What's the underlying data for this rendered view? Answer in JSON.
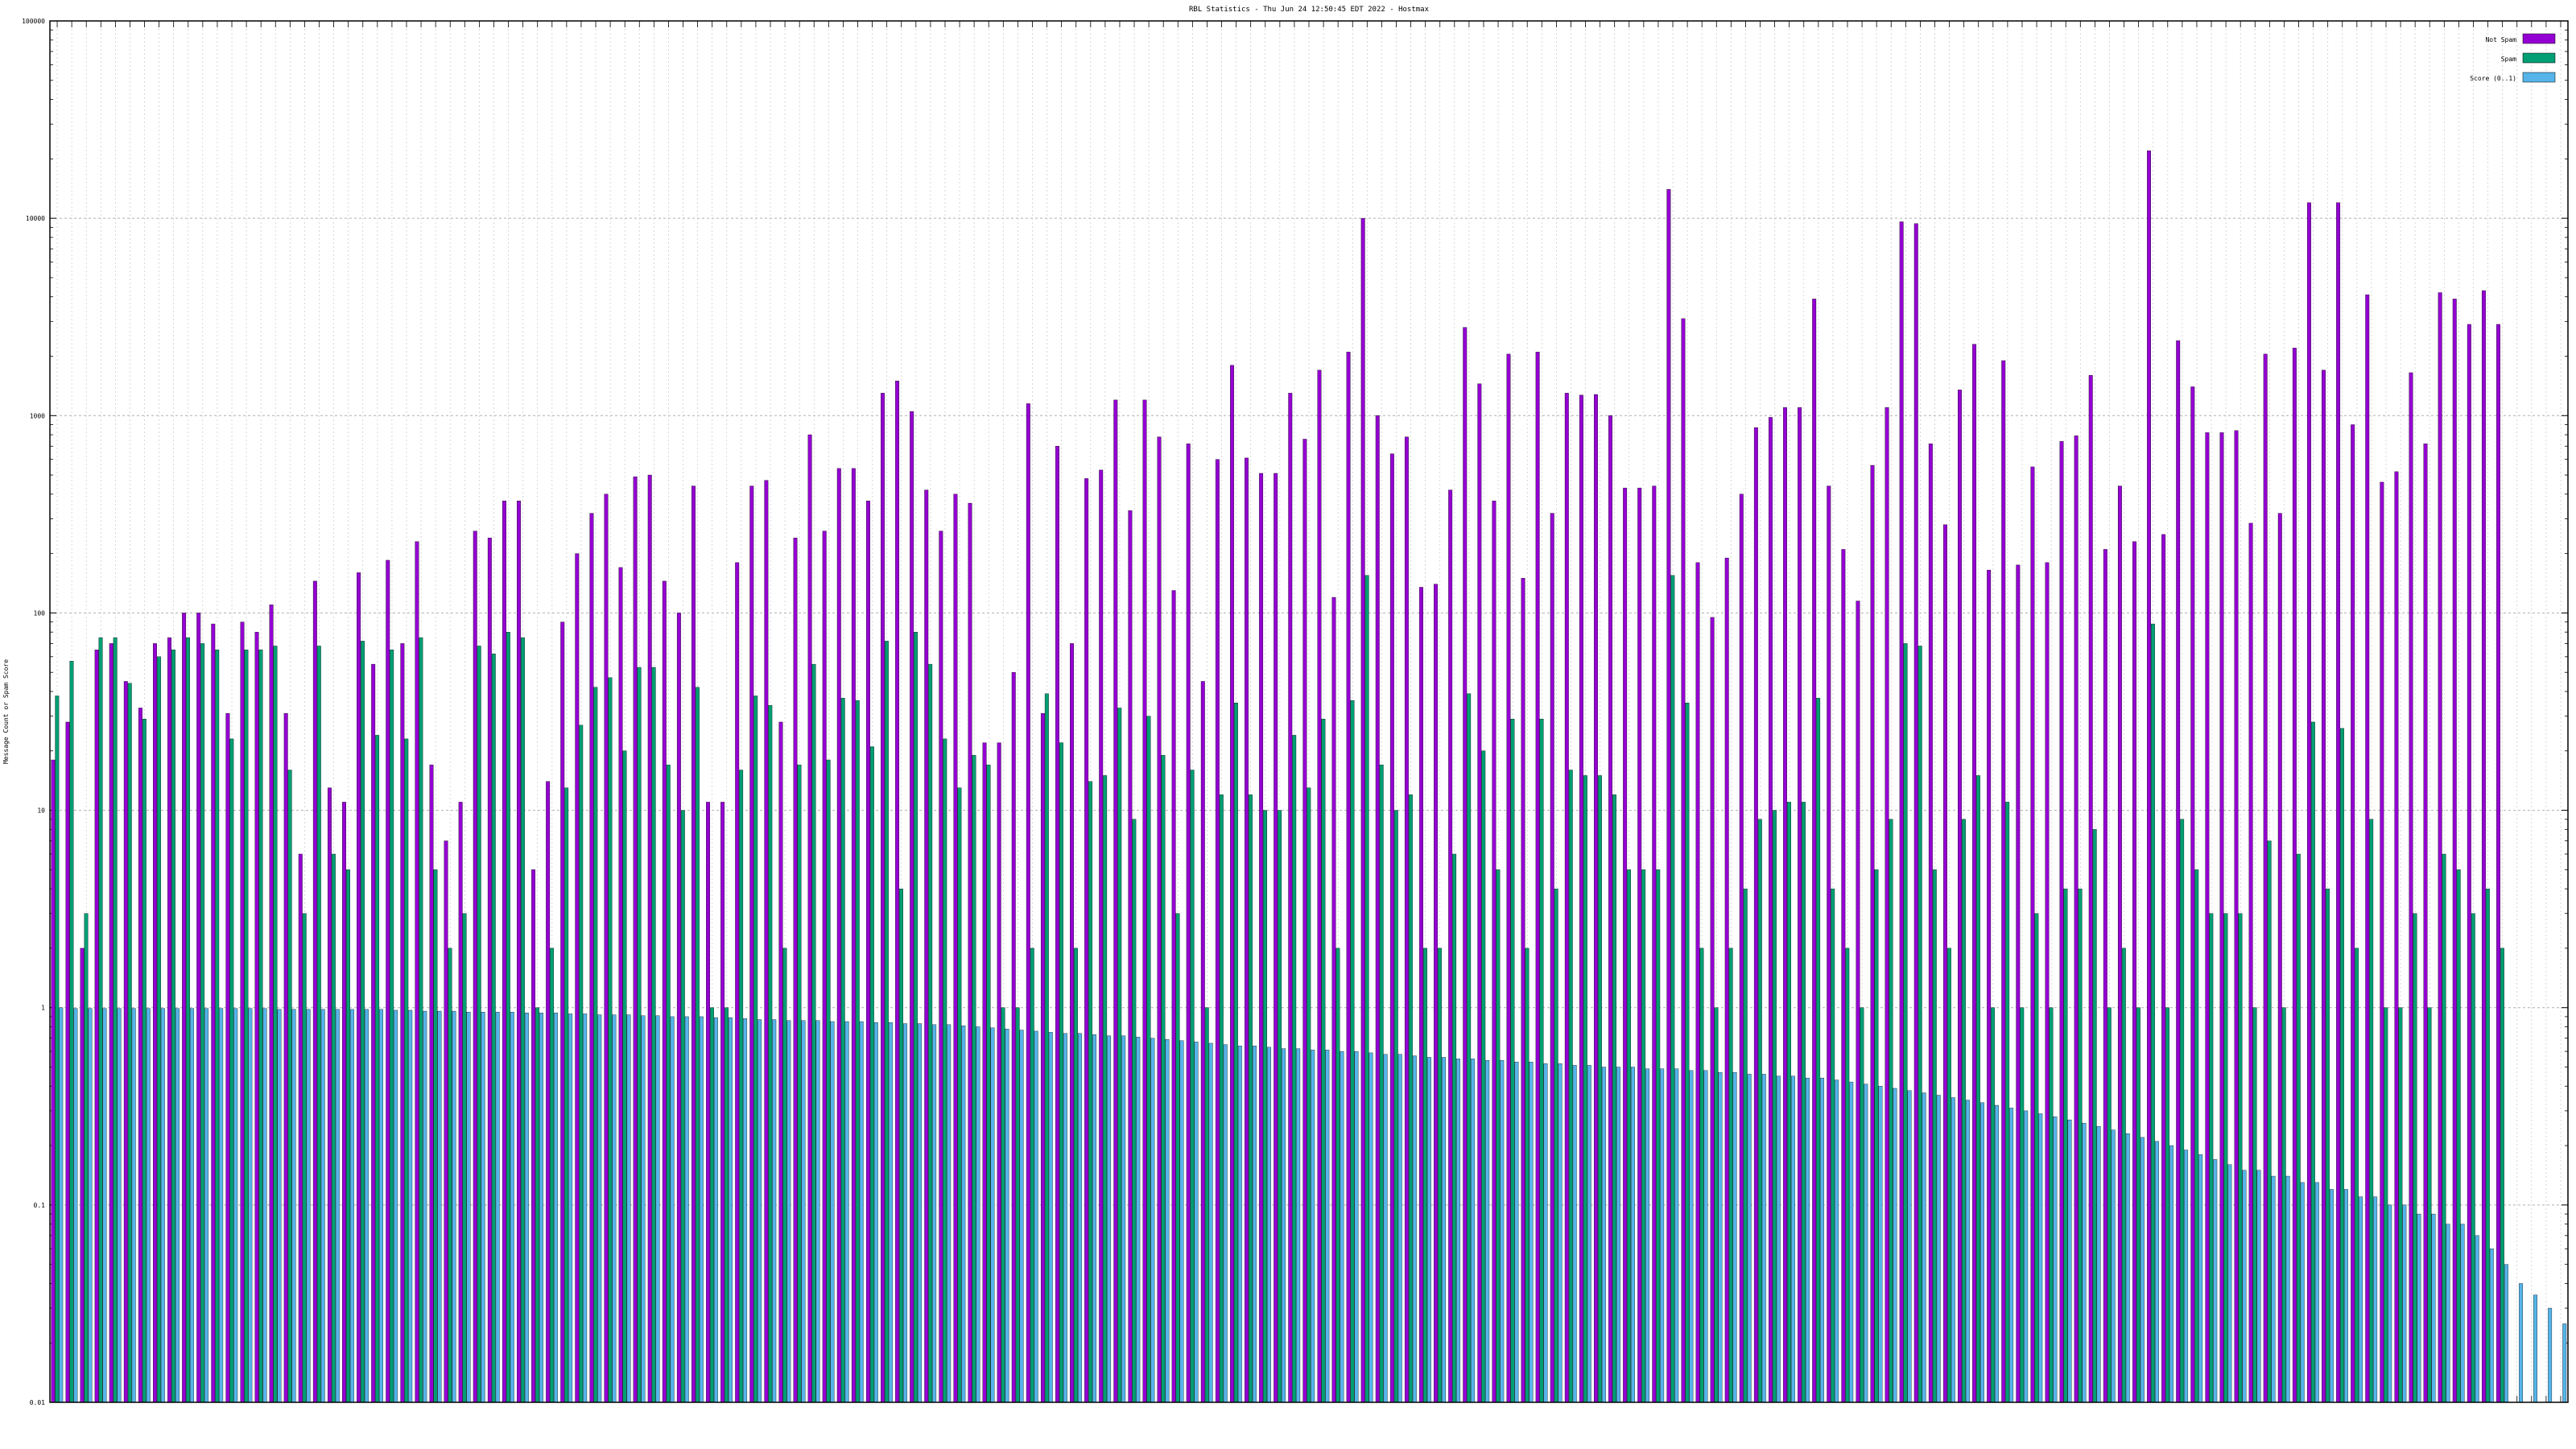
{
  "page": {
    "title": "RBL Statistics - Thu Jun 24 12:50:45 EDT 2022 - Hostmax"
  },
  "chart_data": {
    "type": "bar",
    "title": "RBL Statistics - Thu Jun 24 12:50:45 EDT 2022 - Hostmax",
    "ylabel": "Message Count or Spam Score",
    "xlabel": "",
    "yscale": "log",
    "ylim": [
      0.01,
      100000
    ],
    "yticks": [
      "0.01",
      "0.1",
      "1",
      "10",
      "100",
      "1000",
      "10000",
      "100000"
    ],
    "grid": true,
    "legend_position": "top-right",
    "category_count": 173,
    "x_tick_labels_note": "RBL zone names printed under each group are too small to read",
    "colors": {
      "Not Spam": "#9400d3",
      "Spam": "#009e73",
      "Score": "#56b4e9"
    },
    "series": [
      {
        "name": "Not Spam",
        "values": [
          18,
          28,
          2,
          65,
          70,
          45,
          33,
          70,
          75,
          100,
          100,
          88,
          31,
          90,
          80,
          110,
          31,
          6,
          145,
          13,
          11,
          160,
          55,
          185,
          70,
          230,
          17,
          7,
          11,
          260,
          240,
          370,
          370,
          5,
          14,
          90,
          200,
          320,
          400,
          170,
          490,
          500,
          145,
          100,
          440,
          11,
          11,
          180,
          440,
          470,
          28,
          240,
          800,
          260,
          540,
          540,
          370,
          1300,
          1500,
          1050,
          420,
          260,
          400,
          360,
          22,
          22,
          50,
          1150,
          31,
          700,
          70,
          480,
          530,
          1200,
          330,
          1200,
          780,
          130,
          720,
          45,
          600,
          1800,
          610,
          510,
          510,
          1300,
          760,
          1700,
          120,
          2100,
          10000,
          1000,
          640,
          780,
          135,
          140,
          420,
          2800,
          1450,
          370,
          2050,
          150,
          2100,
          320,
          1300,
          1270,
          1280,
          1000,
          430,
          430,
          440,
          14000,
          3100,
          180,
          95,
          190,
          400,
          870,
          980,
          1100,
          1100,
          3900,
          440,
          210,
          115,
          560,
          1100,
          9600,
          9400,
          720,
          280,
          1350,
          2300,
          165,
          1900,
          175,
          550,
          180,
          740,
          790,
          1600,
          210,
          440,
          230,
          22000,
          250,
          2400,
          1400,
          820,
          820,
          840,
          285,
          2050,
          320,
          2200,
          12000,
          1700,
          12000,
          900,
          4100,
          460,
          520,
          1650,
          720,
          4200,
          3900,
          2900,
          4300,
          2900
        ],
        "value_note": "purple series; first bar in each group; read approximately from the log axis"
      },
      {
        "name": "Spam",
        "values": [
          38,
          57,
          3,
          75,
          75,
          44,
          29,
          60,
          65,
          75,
          70,
          65,
          23,
          65,
          65,
          68,
          16,
          3,
          68,
          6,
          5,
          72,
          24,
          65,
          23,
          75,
          5,
          2,
          3,
          68,
          62,
          80,
          75,
          1,
          2,
          13,
          27,
          42,
          47,
          20,
          53,
          53,
          17,
          10,
          42,
          1,
          1,
          16,
          38,
          34,
          2,
          17,
          55,
          18,
          37,
          36,
          21,
          72,
          4,
          80,
          55,
          23,
          13,
          19,
          17,
          1,
          1,
          2,
          39,
          22,
          2,
          14,
          15,
          33,
          9,
          30,
          19,
          3,
          16,
          1,
          12,
          35,
          12,
          10,
          10,
          24,
          13,
          29,
          2,
          36,
          155,
          17,
          10,
          12,
          2,
          2,
          6,
          39,
          20,
          5,
          29,
          2,
          29,
          4,
          16,
          15,
          15,
          12,
          5,
          5,
          5,
          155,
          35,
          2,
          1,
          2,
          4,
          9,
          10,
          11,
          11,
          37,
          4,
          2,
          1,
          5,
          9,
          70,
          68,
          5,
          2,
          9,
          15,
          1,
          11,
          1,
          3,
          1,
          4,
          4,
          8,
          1,
          2,
          1,
          88,
          1,
          9,
          5,
          3,
          3,
          3,
          1,
          7,
          1,
          6,
          28,
          4,
          26,
          2,
          9,
          1,
          1,
          3,
          1,
          6,
          5,
          3,
          4,
          2
        ],
        "value_note": "teal series; second bar in each group"
      },
      {
        "name": "Score (0..1)",
        "values": [
          1.0,
          0.99,
          0.99,
          0.99,
          0.99,
          0.99,
          0.99,
          0.99,
          0.99,
          0.99,
          0.99,
          0.99,
          0.99,
          0.99,
          0.99,
          0.98,
          0.98,
          0.98,
          0.98,
          0.98,
          0.98,
          0.98,
          0.98,
          0.97,
          0.97,
          0.96,
          0.96,
          0.96,
          0.95,
          0.95,
          0.95,
          0.95,
          0.94,
          0.94,
          0.94,
          0.93,
          0.93,
          0.92,
          0.92,
          0.92,
          0.91,
          0.91,
          0.9,
          0.9,
          0.9,
          0.89,
          0.89,
          0.88,
          0.87,
          0.87,
          0.86,
          0.86,
          0.86,
          0.85,
          0.85,
          0.85,
          0.84,
          0.84,
          0.83,
          0.83,
          0.82,
          0.82,
          0.81,
          0.8,
          0.79,
          0.78,
          0.77,
          0.76,
          0.75,
          0.74,
          0.74,
          0.73,
          0.72,
          0.72,
          0.71,
          0.7,
          0.69,
          0.68,
          0.67,
          0.66,
          0.65,
          0.64,
          0.64,
          0.63,
          0.62,
          0.62,
          0.61,
          0.61,
          0.6,
          0.6,
          0.59,
          0.58,
          0.58,
          0.57,
          0.56,
          0.56,
          0.55,
          0.55,
          0.54,
          0.54,
          0.53,
          0.53,
          0.52,
          0.52,
          0.51,
          0.51,
          0.5,
          0.5,
          0.5,
          0.49,
          0.49,
          0.49,
          0.48,
          0.48,
          0.47,
          0.47,
          0.46,
          0.46,
          0.45,
          0.45,
          0.44,
          0.44,
          0.43,
          0.42,
          0.41,
          0.4,
          0.39,
          0.38,
          0.37,
          0.36,
          0.35,
          0.34,
          0.33,
          0.32,
          0.31,
          0.3,
          0.29,
          0.28,
          0.27,
          0.26,
          0.25,
          0.24,
          0.23,
          0.22,
          0.21,
          0.2,
          0.19,
          0.18,
          0.17,
          0.16,
          0.15,
          0.15,
          0.14,
          0.14,
          0.13,
          0.13,
          0.12,
          0.12,
          0.11,
          0.11,
          0.1,
          0.1,
          0.09,
          0.09,
          0.08,
          0.08,
          0.07,
          0.06,
          0.05,
          0.04,
          0.035,
          0.03,
          0.025
        ],
        "value_note": "light blue series; third bar in each group, steadily decreasing"
      }
    ]
  }
}
